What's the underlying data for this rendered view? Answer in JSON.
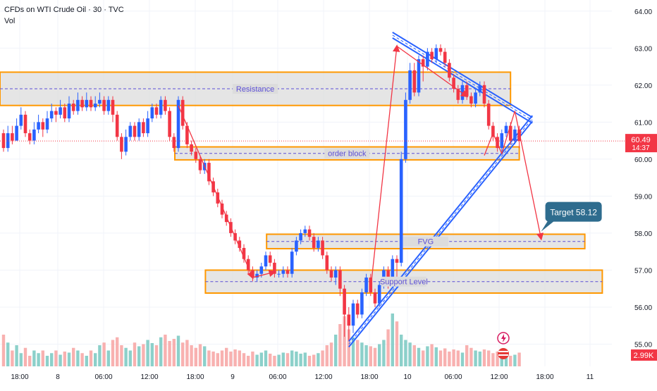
{
  "chart_data": {
    "type": "candlestick",
    "title": "CFDs on WTI Crude Oil · 30 · TVC",
    "indicator": "Vol",
    "y_ticks": [
      "64.00",
      "63.00",
      "62.00",
      "61.00",
      "60.00",
      "59.00",
      "58.00",
      "57.00",
      "56.00",
      "55.00"
    ],
    "x_ticks": [
      "18:00",
      "8",
      "06:00",
      "12:00",
      "18:00",
      "9",
      "06:00",
      "12:00",
      "18:00",
      "10",
      "06:00",
      "12:00",
      "18:00",
      "11"
    ],
    "ylim": [
      54.4,
      64.3
    ],
    "last_price": "60.49",
    "countdown": "14:37",
    "volume_last": "2.99K",
    "colors": {
      "up": "#2962ff",
      "down": "#f23645",
      "zone_border": "#ff9800",
      "zone_fill": "#dcdcdc",
      "label": "#5c4fd6",
      "arrow": "#f23645",
      "channel": "#2962ff"
    },
    "zones": [
      {
        "label": "Resistance",
        "y_top": 62.35,
        "y_bottom": 61.45,
        "x_start_index": 0,
        "x_end_index": 116
      },
      {
        "label": "order block",
        "y_top": 60.33,
        "y_bottom": 59.98,
        "x_start_index": 40,
        "x_end_index": 118
      },
      {
        "label": "FVG",
        "y_top": 57.97,
        "y_bottom": 57.58,
        "x_start_index": 61,
        "x_end_index": 133
      },
      {
        "label": "Support Level",
        "y_top": 57.0,
        "y_bottom": 56.38,
        "x_start_index": 47,
        "x_end_index": 137
      }
    ],
    "annotation": {
      "label": "Target 58.12",
      "value": 58.12
    },
    "candles": [
      [
        60.7,
        60.3,
        60.8,
        60.2
      ],
      [
        60.3,
        60.7,
        60.9,
        60.2
      ],
      [
        60.7,
        60.5,
        60.9,
        60.4
      ],
      [
        60.5,
        60.9,
        61.1,
        60.5
      ],
      [
        60.9,
        61.2,
        61.4,
        60.8
      ],
      [
        61.2,
        60.7,
        61.3,
        60.6
      ],
      [
        60.7,
        60.5,
        60.8,
        60.4
      ],
      [
        60.5,
        60.8,
        61.0,
        60.4
      ],
      [
        60.8,
        61.0,
        61.2,
        60.7
      ],
      [
        61.0,
        60.8,
        61.1,
        60.6
      ],
      [
        60.8,
        61.1,
        61.3,
        60.7
      ],
      [
        61.1,
        61.3,
        61.5,
        61.0
      ],
      [
        61.3,
        61.2,
        61.4,
        61.0
      ],
      [
        61.2,
        61.4,
        61.6,
        61.1
      ],
      [
        61.4,
        61.1,
        61.5,
        61.0
      ],
      [
        61.1,
        61.5,
        61.7,
        61.0
      ],
      [
        61.5,
        61.3,
        61.6,
        61.2
      ],
      [
        61.3,
        61.6,
        61.8,
        61.2
      ],
      [
        61.6,
        61.4,
        61.7,
        61.3
      ],
      [
        61.4,
        61.6,
        61.8,
        61.3
      ],
      [
        61.6,
        61.4,
        61.7,
        61.3
      ],
      [
        61.4,
        61.5,
        61.7,
        61.3
      ],
      [
        61.5,
        61.6,
        61.8,
        61.4
      ],
      [
        61.6,
        61.3,
        61.7,
        61.2
      ],
      [
        61.3,
        61.6,
        61.7,
        61.2
      ],
      [
        61.6,
        61.2,
        61.7,
        61.0
      ],
      [
        61.2,
        60.6,
        61.3,
        60.5
      ],
      [
        60.6,
        60.2,
        60.7,
        60.0
      ],
      [
        60.2,
        60.6,
        60.8,
        60.1
      ],
      [
        60.6,
        60.9,
        61.0,
        60.5
      ],
      [
        60.9,
        60.6,
        61.0,
        60.5
      ],
      [
        60.6,
        61.0,
        61.1,
        60.5
      ],
      [
        61.0,
        60.7,
        61.1,
        60.6
      ],
      [
        60.7,
        61.1,
        61.3,
        60.6
      ],
      [
        61.1,
        61.4,
        61.5,
        61.0
      ],
      [
        61.4,
        61.2,
        61.5,
        61.1
      ],
      [
        61.2,
        61.6,
        61.7,
        61.1
      ],
      [
        61.6,
        61.3,
        61.7,
        61.2
      ],
      [
        61.3,
        60.6,
        61.4,
        60.5
      ],
      [
        60.6,
        60.3,
        60.7,
        60.2
      ],
      [
        60.3,
        61.6,
        61.7,
        60.2
      ],
      [
        61.6,
        60.9,
        61.7,
        60.8
      ],
      [
        60.9,
        60.4,
        61.0,
        60.3
      ],
      [
        60.4,
        60.2,
        60.5,
        60.1
      ],
      [
        60.2,
        60.0,
        60.3,
        59.9
      ],
      [
        60.0,
        59.7,
        60.1,
        59.6
      ],
      [
        59.7,
        59.9,
        60.0,
        59.6
      ],
      [
        59.9,
        59.4,
        60.0,
        59.3
      ],
      [
        59.4,
        59.1,
        59.5,
        59.0
      ],
      [
        59.1,
        58.8,
        59.2,
        58.7
      ],
      [
        58.8,
        58.5,
        58.9,
        58.4
      ],
      [
        58.5,
        58.3,
        58.6,
        58.2
      ],
      [
        58.3,
        58.0,
        58.4,
        57.9
      ],
      [
        58.0,
        57.8,
        58.1,
        57.7
      ],
      [
        57.8,
        57.6,
        57.9,
        57.5
      ],
      [
        57.6,
        57.3,
        57.7,
        57.2
      ],
      [
        57.3,
        57.0,
        57.4,
        56.9
      ],
      [
        57.0,
        56.8,
        57.1,
        56.7
      ],
      [
        56.8,
        56.9,
        57.0,
        56.7
      ],
      [
        56.9,
        57.1,
        57.2,
        56.8
      ],
      [
        57.1,
        57.4,
        57.5,
        57.0
      ],
      [
        57.4,
        57.2,
        57.5,
        57.1
      ],
      [
        57.2,
        56.9,
        57.3,
        56.8
      ],
      [
        56.9,
        56.9,
        57.0,
        56.8
      ],
      [
        56.9,
        57.0,
        57.1,
        56.8
      ],
      [
        57.0,
        56.9,
        57.1,
        56.8
      ],
      [
        56.9,
        57.5,
        57.6,
        56.8
      ],
      [
        57.5,
        57.8,
        57.9,
        57.4
      ],
      [
        57.8,
        58.0,
        58.1,
        57.7
      ],
      [
        58.0,
        58.1,
        58.2,
        57.9
      ],
      [
        58.1,
        57.9,
        58.2,
        57.8
      ],
      [
        57.9,
        57.6,
        58.0,
        57.5
      ],
      [
        57.6,
        57.8,
        57.9,
        57.5
      ],
      [
        57.8,
        57.4,
        57.9,
        57.3
      ],
      [
        57.4,
        57.0,
        57.5,
        56.9
      ],
      [
        57.0,
        56.8,
        57.1,
        56.7
      ],
      [
        56.8,
        57.0,
        57.1,
        56.6
      ],
      [
        57.0,
        56.5,
        57.1,
        56.3
      ],
      [
        56.5,
        55.8,
        56.6,
        55.2
      ],
      [
        55.8,
        55.5,
        56.0,
        55.1
      ],
      [
        55.5,
        56.1,
        56.2,
        55.3
      ],
      [
        56.1,
        55.8,
        56.2,
        55.7
      ],
      [
        55.8,
        56.4,
        56.5,
        55.7
      ],
      [
        56.4,
        56.8,
        56.9,
        56.3
      ],
      [
        56.8,
        56.4,
        56.9,
        56.3
      ],
      [
        56.4,
        56.1,
        56.5,
        56.0
      ],
      [
        56.1,
        56.6,
        56.7,
        56.0
      ],
      [
        56.6,
        57.0,
        57.1,
        56.5
      ],
      [
        57.0,
        56.7,
        57.1,
        56.5
      ],
      [
        56.7,
        57.3,
        57.4,
        56.6
      ],
      [
        57.3,
        57.2,
        57.4,
        56.8
      ],
      [
        57.2,
        60.0,
        60.2,
        57.1
      ],
      [
        60.0,
        61.6,
        61.8,
        59.9
      ],
      [
        61.6,
        62.4,
        62.6,
        61.5
      ],
      [
        62.4,
        61.8,
        62.6,
        61.7
      ],
      [
        61.8,
        62.7,
        62.8,
        61.7
      ],
      [
        62.7,
        62.5,
        62.8,
        62.1
      ],
      [
        62.5,
        62.9,
        63.0,
        62.4
      ],
      [
        62.9,
        62.7,
        63.0,
        62.6
      ],
      [
        62.7,
        63.0,
        63.1,
        62.6
      ],
      [
        63.0,
        62.9,
        63.1,
        62.8
      ],
      [
        62.9,
        62.6,
        63.0,
        62.5
      ],
      [
        62.6,
        62.2,
        62.7,
        62.1
      ],
      [
        62.2,
        61.9,
        62.3,
        61.8
      ],
      [
        61.9,
        61.6,
        62.0,
        61.5
      ],
      [
        61.6,
        62.0,
        62.1,
        61.5
      ],
      [
        62.0,
        61.7,
        62.1,
        61.6
      ],
      [
        61.7,
        61.5,
        61.8,
        61.4
      ],
      [
        61.5,
        61.8,
        61.9,
        61.4
      ],
      [
        61.8,
        62.0,
        62.1,
        61.7
      ],
      [
        62.0,
        61.5,
        62.1,
        61.4
      ],
      [
        61.5,
        60.9,
        61.6,
        60.8
      ],
      [
        60.9,
        60.6,
        61.0,
        60.5
      ],
      [
        60.6,
        60.3,
        60.7,
        60.2
      ],
      [
        60.3,
        60.7,
        60.8,
        60.2
      ],
      [
        60.7,
        60.9,
        61.0,
        60.6
      ],
      [
        60.9,
        60.5,
        61.0,
        60.4
      ],
      [
        60.5,
        60.8,
        60.9,
        60.4
      ],
      [
        60.8,
        60.49,
        60.9,
        60.3
      ]
    ],
    "volume": [
      60,
      45,
      30,
      40,
      25,
      35,
      20,
      30,
      25,
      30,
      20,
      25,
      30,
      22,
      28,
      26,
      35,
      30,
      25,
      20,
      30,
      25,
      40,
      45,
      30,
      50,
      55,
      40,
      35,
      30,
      45,
      38,
      42,
      50,
      44,
      40,
      55,
      60,
      48,
      52,
      58,
      45,
      50,
      40,
      35,
      42,
      38,
      30,
      28,
      25,
      30,
      35,
      28,
      32,
      30,
      25,
      20,
      28,
      22,
      26,
      30,
      24,
      20,
      22,
      26,
      25,
      30,
      28,
      24,
      26,
      20,
      22,
      25,
      30,
      40,
      45,
      60,
      80,
      95,
      70,
      55,
      50,
      45,
      40,
      38,
      35,
      42,
      50,
      70,
      100,
      85,
      60,
      50,
      45,
      40,
      35,
      30,
      38,
      42,
      36,
      30,
      34,
      28,
      32,
      30,
      26,
      40,
      35,
      30,
      28,
      32,
      30,
      25,
      28,
      22,
      24,
      20,
      22,
      26
    ]
  }
}
